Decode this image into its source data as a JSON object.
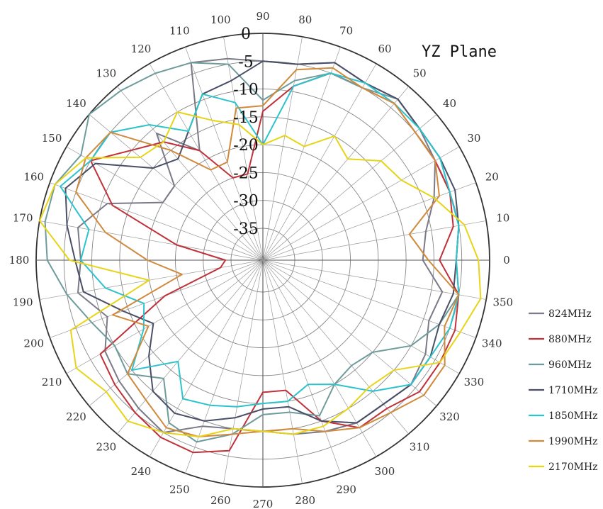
{
  "chart_data": {
    "type": "line",
    "subtype": "polar",
    "title": "YZ Plane",
    "angle_unit": "degrees",
    "angle_ticks": [
      "0",
      "10",
      "20",
      "30",
      "40",
      "50",
      "60",
      "70",
      "80",
      "90",
      "100",
      "110",
      "120",
      "130",
      "140",
      "150",
      "160",
      "170",
      "180",
      "190",
      "200",
      "210",
      "220",
      "230",
      "240",
      "250",
      "260",
      "270",
      "280",
      "290",
      "300",
      "310",
      "320",
      "330",
      "340",
      "350"
    ],
    "radial_ticks": [
      "0",
      "-5",
      "-10",
      "-15",
      "-20",
      "-25",
      "-30",
      "-35"
    ],
    "radial_range": [
      -35,
      0
    ],
    "grid": true,
    "legend_position": "right",
    "angles": [
      0,
      10,
      20,
      30,
      40,
      50,
      60,
      70,
      80,
      90,
      100,
      110,
      120,
      130,
      140,
      150,
      160,
      170,
      180,
      190,
      200,
      210,
      220,
      230,
      240,
      250,
      260,
      270,
      280,
      290,
      300,
      310,
      320,
      330,
      340,
      350
    ],
    "series": [
      {
        "name": "824MHz",
        "color": "#7a7a88",
        "values": [
          -12,
          -11,
          -8,
          -5,
          -4,
          -3,
          -4,
          -3,
          -5,
          -5,
          -4,
          -3,
          -18,
          -11,
          -20,
          -20,
          -11,
          -7,
          -8,
          -7,
          -11,
          -8,
          -7,
          -6,
          -5,
          -9,
          -10,
          -10,
          -9,
          -8,
          -7,
          -7,
          -6,
          -7,
          -9,
          -8
        ]
      },
      {
        "name": "880MHz",
        "color": "#c0313a",
        "values": [
          -9,
          -6,
          -5,
          -5,
          -5,
          -4,
          -5,
          -5,
          -9,
          -14,
          -25,
          -25,
          -18,
          -13,
          -10,
          -5,
          -12,
          -25,
          -34,
          -33,
          -22,
          -7,
          -6,
          -5,
          -4,
          -4,
          -6,
          -17,
          -17,
          -10,
          -6,
          -6,
          -4,
          -4,
          -4,
          -5
        ]
      },
      {
        "name": "960MHz",
        "color": "#6e9b9b",
        "values": [
          -6,
          -5,
          -5,
          -4,
          -4,
          -3,
          -5,
          -5,
          -8,
          -12,
          -5,
          -3,
          -2,
          -1,
          0,
          -3,
          -1,
          -1,
          -2,
          -5,
          -8,
          -10,
          -9,
          -13,
          -7,
          -6,
          -9,
          -13,
          -13,
          -11,
          -15,
          -16,
          -15,
          -10,
          -7,
          -5
        ]
      },
      {
        "name": "1710MHz",
        "color": "#4a4e66",
        "values": [
          -6,
          -5,
          -4,
          -4,
          -4,
          -3,
          -4,
          -3,
          -5,
          -5,
          -8,
          -9,
          -14,
          -17,
          -15,
          -6,
          -3,
          -5,
          -7,
          -8,
          -14,
          -18,
          -14,
          -10,
          -9,
          -10,
          -12,
          -14,
          -14,
          -10,
          -7,
          -7,
          -6,
          -6,
          -7,
          -6
        ]
      },
      {
        "name": "1850MHz",
        "color": "#2cc3cc",
        "values": [
          -6,
          -5,
          -5,
          -4,
          -4,
          -4,
          -4,
          -5,
          -9,
          -20,
          -12,
          -9,
          -14,
          -9,
          -5,
          -5,
          -2,
          -9,
          -8,
          -12,
          -18,
          -16,
          -10,
          -17,
          -12,
          -13,
          -14,
          -15,
          -15,
          -17,
          -15,
          -10,
          -6,
          -6,
          -5,
          -5
        ]
      },
      {
        "name": "1990MHz",
        "color": "#cf8a3c",
        "values": [
          -11,
          -14,
          -7,
          -5,
          -5,
          -4,
          -5,
          -4,
          -6,
          -13,
          -13,
          -22,
          -22,
          -15,
          -5,
          -4,
          -5,
          -12,
          -20,
          -26,
          -12,
          -17,
          -9,
          -8,
          -6,
          -7,
          -9,
          -10,
          -10,
          -8,
          -6,
          -5,
          -3,
          -3,
          -6,
          -5
        ]
      },
      {
        "name": "2170MHz",
        "color": "#e8d417",
        "values": [
          -2,
          -4,
          -8,
          -12,
          -13,
          -17,
          -15,
          -19,
          -18,
          -20,
          -16,
          -14,
          -10,
          -13,
          -12,
          -4,
          -1,
          0,
          -6,
          -20,
          -4,
          -2,
          -4,
          -3,
          -5,
          -7,
          -10,
          -10,
          -9,
          -9,
          -10,
          -11,
          -10,
          -4,
          -3,
          -1
        ]
      }
    ]
  }
}
